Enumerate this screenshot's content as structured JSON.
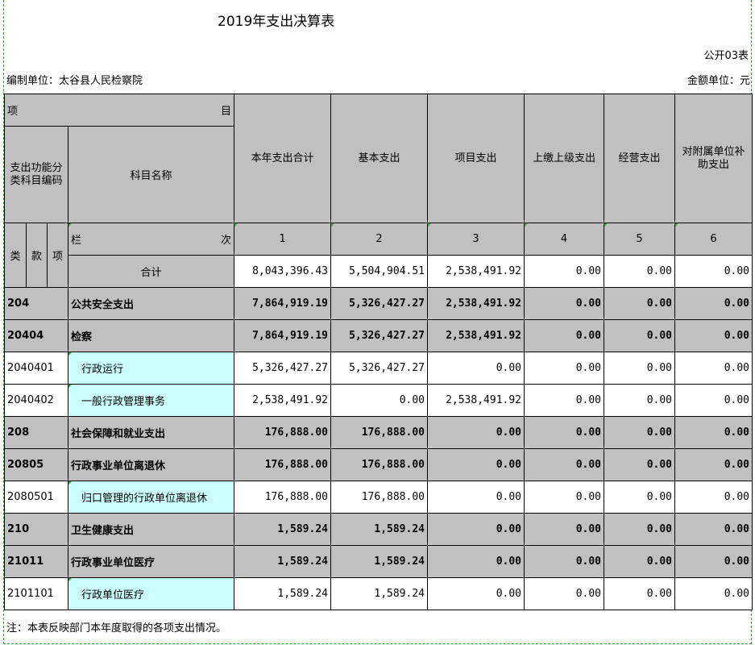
{
  "title": "2019年支出决算表",
  "table_code": "公开03表",
  "org_label": "编制单位：太谷县人民检察院",
  "unit_label": "金额单位：元",
  "header": {
    "xiang": "项",
    "mu": "目",
    "code_col": "支出功能分类科目编码",
    "name_col": "科目名称",
    "lei": "类",
    "kuan": "款",
    "xiang2": "项",
    "lan": "栏",
    "ci": "次",
    "cols": [
      "本年支出合计",
      "基本支出",
      "项目支出",
      "上缴上级支出",
      "经营支出",
      "对附属单位补助支出"
    ],
    "col_nums": [
      "1",
      "2",
      "3",
      "4",
      "5",
      "6"
    ]
  },
  "total": {
    "label": "合计",
    "values": [
      "8,043,396.43",
      "5,504,904.51",
      "2,538,491.92",
      "0.00",
      "0.00",
      "0.00"
    ]
  },
  "rows": [
    {
      "code": "204",
      "name": "公共安全支出",
      "level": "group",
      "values": [
        "7,864,919.19",
        "5,326,427.27",
        "2,538,491.92",
        "0.00",
        "0.00",
        "0.00"
      ]
    },
    {
      "code": "20404",
      "name": "检察",
      "level": "group",
      "values": [
        "7,864,919.19",
        "5,326,427.27",
        "2,538,491.92",
        "0.00",
        "0.00",
        "0.00"
      ]
    },
    {
      "code": "2040401",
      "name": "行政运行",
      "level": "item",
      "values": [
        "5,326,427.27",
        "5,326,427.27",
        "0.00",
        "0.00",
        "0.00",
        "0.00"
      ]
    },
    {
      "code": "2040402",
      "name": "一般行政管理事务",
      "level": "item",
      "values": [
        "2,538,491.92",
        "0.00",
        "2,538,491.92",
        "0.00",
        "0.00",
        "0.00"
      ]
    },
    {
      "code": "208",
      "name": "社会保障和就业支出",
      "level": "group",
      "values": [
        "176,888.00",
        "176,888.00",
        "0.00",
        "0.00",
        "0.00",
        "0.00"
      ]
    },
    {
      "code": "20805",
      "name": "行政事业单位离退休",
      "level": "group",
      "values": [
        "176,888.00",
        "176,888.00",
        "0.00",
        "0.00",
        "0.00",
        "0.00"
      ]
    },
    {
      "code": "2080501",
      "name": "归口管理的行政单位离退休",
      "level": "item",
      "values": [
        "176,888.00",
        "176,888.00",
        "0.00",
        "0.00",
        "0.00",
        "0.00"
      ]
    },
    {
      "code": "210",
      "name": "卫生健康支出",
      "level": "group",
      "values": [
        "1,589.24",
        "1,589.24",
        "0.00",
        "0.00",
        "0.00",
        "0.00"
      ]
    },
    {
      "code": "21011",
      "name": "行政事业单位医疗",
      "level": "group",
      "values": [
        "1,589.24",
        "1,589.24",
        "0.00",
        "0.00",
        "0.00",
        "0.00"
      ]
    },
    {
      "code": "2101101",
      "name": "行政单位医疗",
      "level": "item",
      "values": [
        "1,589.24",
        "1,589.24",
        "0.00",
        "0.00",
        "0.00",
        "0.00"
      ]
    }
  ],
  "note": "注：本表反映部门本年度取得的各项支出情况。"
}
